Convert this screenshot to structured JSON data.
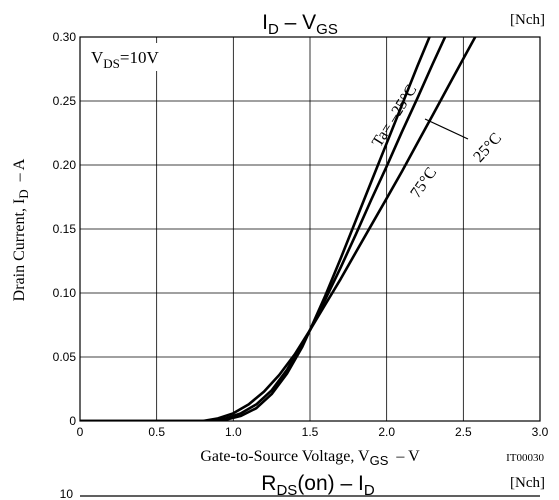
{
  "chart_data": [
    {
      "type": "line",
      "title_main": "I",
      "title_sub1": "D",
      "title_mid": " – V",
      "title_sub2": "GS",
      "tag": "[Nch]",
      "condition_main": "V",
      "condition_sub": "DS",
      "condition_rest": "=10V",
      "xlabel_main": "Gate-to-Source Voltage, V",
      "xlabel_sub": "GS",
      "xlabel_unit": "–  V",
      "ylabel_main": "Drain Current, I",
      "ylabel_sub": "D",
      "ylabel_unit": "–  A",
      "figure_code": "IT00030",
      "xlim": [
        0,
        3.0
      ],
      "ylim": [
        0,
        0.3
      ],
      "xticks": [
        "0",
        "0.5",
        "1.0",
        "1.5",
        "2.0",
        "2.5",
        "3.0"
      ],
      "yticks": [
        "0",
        "0.05",
        "0.10",
        "0.15",
        "0.20",
        "0.25",
        "0.30"
      ],
      "grid": true,
      "series": [
        {
          "name": "Ta= –25°C",
          "x": [
            0,
            0.85,
            0.95,
            1.05,
            1.15,
            1.25,
            1.35,
            1.45,
            1.5,
            1.6,
            1.7,
            1.8,
            1.9,
            2.0,
            2.1,
            2.2,
            2.3
          ],
          "y": [
            0,
            0,
            0.001,
            0.004,
            0.01,
            0.021,
            0.037,
            0.058,
            0.071,
            0.098,
            0.127,
            0.157,
            0.187,
            0.217,
            0.247,
            0.277,
            0.306
          ]
        },
        {
          "name": "25°C",
          "x": [
            0,
            0.85,
            0.95,
            1.05,
            1.15,
            1.25,
            1.35,
            1.45,
            1.5,
            1.6,
            1.7,
            1.8,
            1.9,
            2.0,
            2.1,
            2.2,
            2.3,
            2.4
          ],
          "y": [
            0,
            0,
            0.002,
            0.006,
            0.013,
            0.024,
            0.04,
            0.06,
            0.071,
            0.095,
            0.12,
            0.146,
            0.173,
            0.199,
            0.226,
            0.252,
            0.279,
            0.305
          ]
        },
        {
          "name": "75°C",
          "x": [
            0,
            0.8,
            0.9,
            1.0,
            1.1,
            1.2,
            1.3,
            1.4,
            1.5,
            1.6,
            1.7,
            1.8,
            1.9,
            2.0,
            2.1,
            2.2,
            2.3,
            2.4,
            2.5,
            2.6
          ],
          "y": [
            0,
            0,
            0.002,
            0.006,
            0.013,
            0.023,
            0.036,
            0.052,
            0.071,
            0.091,
            0.111,
            0.132,
            0.153,
            0.174,
            0.195,
            0.217,
            0.239,
            0.261,
            0.283,
            0.305
          ]
        }
      ]
    },
    {
      "type": "line",
      "title_main": "R",
      "title_sub1": "DS",
      "title_mid": "(on) – I",
      "title_sub2": "D",
      "tag": "[Nch]",
      "ytop_label": "10"
    }
  ]
}
